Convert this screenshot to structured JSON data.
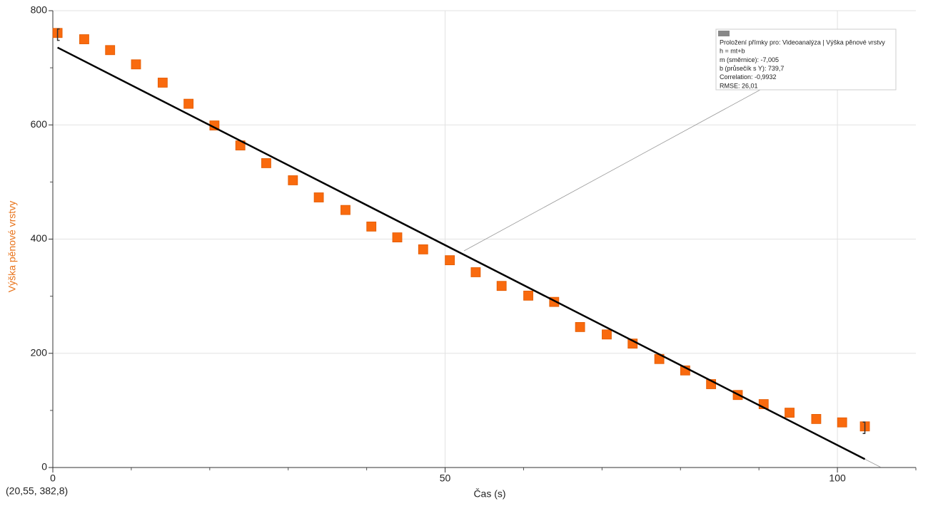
{
  "chart_data": {
    "type": "scatter",
    "x_label": "Čas (s)",
    "y_label": "Výška pěnové vrstvy",
    "readout": "(20,55, 382,8)",
    "xlim": [
      0,
      110
    ],
    "ylim": [
      0,
      800
    ],
    "xticks": [
      0,
      50,
      100
    ],
    "yticks": [
      0,
      200,
      400,
      600,
      800
    ],
    "xminorticks": [
      10,
      20,
      30,
      40,
      60,
      70,
      80,
      90,
      110
    ],
    "yminorticks": [
      100,
      300,
      500,
      700
    ],
    "grid": true,
    "series": [
      {
        "name": "Výška pěnové vrstvy",
        "color": "#f96a0e",
        "x": [
          0.6,
          4.0,
          7.3,
          10.6,
          14.0,
          17.3,
          20.6,
          23.9,
          27.2,
          30.6,
          33.9,
          37.3,
          40.6,
          43.9,
          47.2,
          50.6,
          53.9,
          57.2,
          60.6,
          63.9,
          67.2,
          70.6,
          73.9,
          77.3,
          80.6,
          83.9,
          87.3,
          90.6,
          93.9,
          97.3,
          100.6,
          103.5
        ],
        "values": [
          761,
          750,
          731,
          706,
          674,
          637,
          599,
          564,
          533,
          503,
          473,
          451,
          422,
          403,
          382,
          363,
          342,
          318,
          301,
          290,
          246,
          233,
          217,
          190,
          170,
          146,
          127,
          111,
          96,
          85,
          79,
          72
        ]
      }
    ],
    "fit": {
      "m": -7.005,
      "b": 739.7,
      "color": "#000000"
    },
    "annotation": [
      "Proložení přímky pro: Videoanalýza | Výška pěnové vrstvy",
      "h = mt+b",
      "m (směrnice): -7,005",
      "b (průsečík s Y): 739,7",
      "Correlation: -0,9932",
      "RMSE: 26,01"
    ]
  }
}
